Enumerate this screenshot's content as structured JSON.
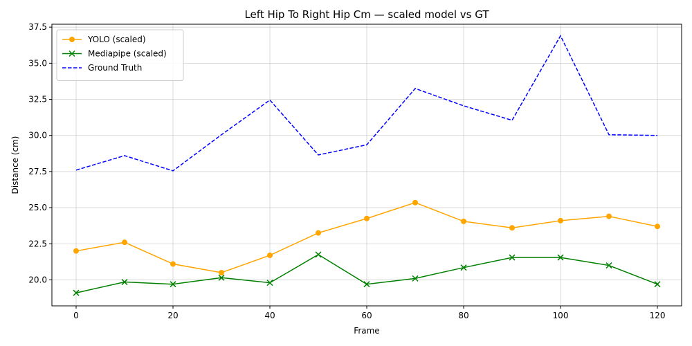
{
  "chart_data": {
    "type": "line",
    "title": "Left Hip To Right Hip Cm — scaled model vs GT",
    "xlabel": "Frame",
    "ylabel": "Distance (cm)",
    "xlim": [
      -5,
      125
    ],
    "ylim": [
      18.2,
      37.7
    ],
    "xticks": [
      0,
      20,
      40,
      60,
      80,
      100,
      120
    ],
    "yticks": [
      20.0,
      22.5,
      25.0,
      27.5,
      30.0,
      32.5,
      35.0,
      37.5
    ],
    "grid": true,
    "legend_position": "top-left",
    "x": [
      0,
      10,
      20,
      30,
      40,
      50,
      60,
      70,
      80,
      90,
      100,
      110,
      120
    ],
    "series": [
      {
        "name": "YOLO (scaled)",
        "color": "#ffa500",
        "marker": "circle",
        "line_style": "solid",
        "values": [
          22.0,
          22.6,
          21.1,
          20.5,
          21.7,
          23.25,
          24.25,
          25.35,
          24.05,
          23.6,
          24.1,
          24.4,
          23.7
        ]
      },
      {
        "name": "Mediapipe (scaled)",
        "color": "#008000",
        "marker": "x",
        "line_style": "solid",
        "values": [
          19.1,
          19.85,
          19.7,
          20.15,
          19.8,
          21.75,
          19.7,
          20.1,
          20.85,
          21.55,
          21.55,
          21.0,
          19.7
        ]
      },
      {
        "name": "Ground Truth",
        "color": "#0000ff",
        "marker": "none",
        "line_style": "dashed",
        "values": [
          27.6,
          28.6,
          27.55,
          30.05,
          32.45,
          28.65,
          29.35,
          33.25,
          32.05,
          31.05,
          36.9,
          30.05,
          30.0
        ]
      }
    ]
  }
}
